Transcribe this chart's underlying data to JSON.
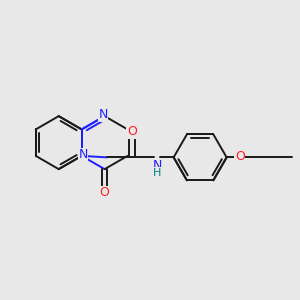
{
  "background_color": "#e8e8e8",
  "bond_color": "#1a1a1a",
  "nitrogen_color": "#2020ff",
  "oxygen_color": "#ff2020",
  "nh_color": "#008080",
  "figsize": [
    3.0,
    3.0
  ],
  "dpi": 100,
  "xlim": [
    0,
    10
  ],
  "ylim": [
    0,
    10
  ],
  "lw": 1.4,
  "fontsize": 8.5
}
